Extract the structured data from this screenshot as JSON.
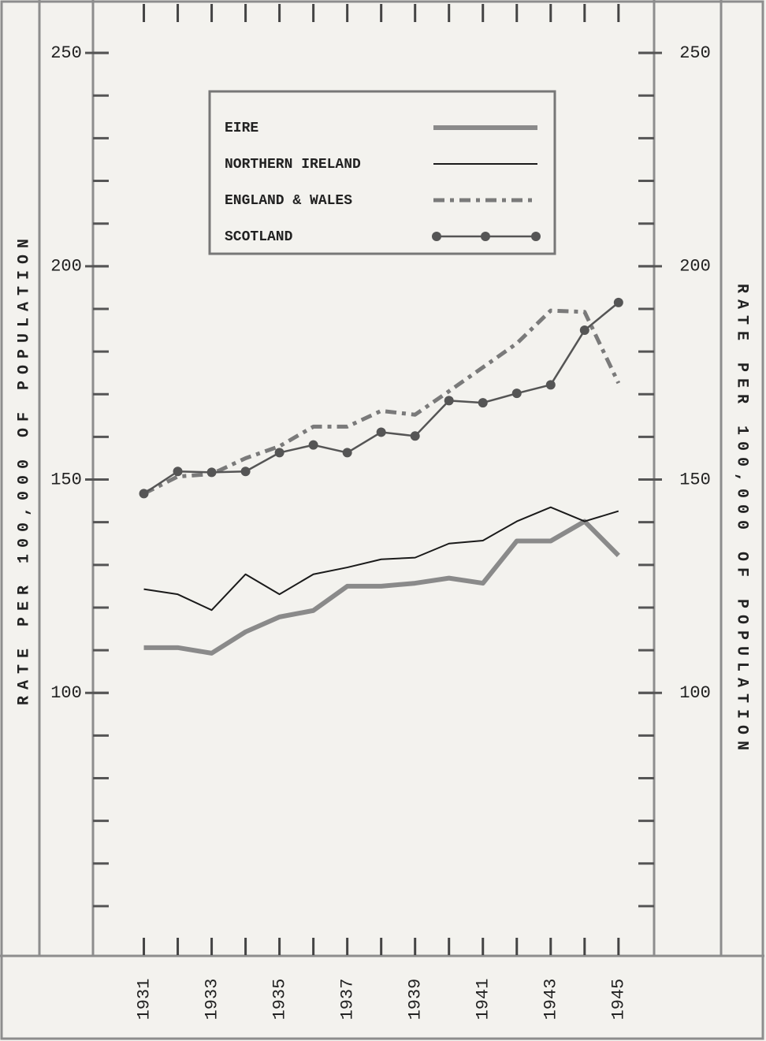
{
  "chart_data": {
    "type": "line",
    "y_label": "RATE PER 100,000 OF POPULATION",
    "x": [
      1931,
      1932,
      1933,
      1934,
      1935,
      1936,
      1937,
      1938,
      1939,
      1940,
      1941,
      1942,
      1943,
      1944,
      1945
    ],
    "series": [
      {
        "name": "EIRE",
        "color": "#8a8a8a",
        "line_style": "solid",
        "width": 6,
        "markers": false,
        "values": [
          110.6,
          110.6,
          109.3,
          114.3,
          117.8,
          119.3,
          125,
          125,
          125.7,
          126.9,
          125.7,
          135.6,
          135.6,
          140.2,
          132.2
        ]
      },
      {
        "name": "NORTHERN IRELAND",
        "color": "#1a1a1a",
        "line_style": "solid",
        "width": 2,
        "markers": false,
        "values": [
          124.3,
          123.1,
          119.4,
          127.8,
          123.1,
          127.8,
          129.4,
          131.3,
          131.7,
          135,
          135.7,
          140.2,
          143.5,
          140.2,
          142.6
        ]
      },
      {
        "name": "ENGLAND & WALES",
        "color": "#7a7a7a",
        "line_style": "dashed",
        "width": 5,
        "markers": false,
        "values": [
          146.7,
          150.7,
          151.3,
          155,
          157.8,
          162.4,
          162.4,
          166.1,
          165.2,
          170.7,
          176.3,
          181.9,
          189.6,
          189.3,
          172.6
        ]
      },
      {
        "name": "SCOTLAND",
        "color": "#555555",
        "line_style": "solid",
        "width": 2.5,
        "markers": true,
        "values": [
          146.7,
          151.9,
          151.7,
          151.9,
          156.3,
          158.1,
          156.3,
          161.1,
          160.2,
          168.5,
          168,
          170.2,
          172.2,
          185,
          191.5
        ]
      }
    ],
    "xlim": [
      1929.5,
      1946.05
    ],
    "xticks": [
      1931,
      1933,
      1935,
      1937,
      1939,
      1941,
      1943,
      1945
    ],
    "minor_xticks": [
      1931,
      1932,
      1933,
      1934,
      1935,
      1936,
      1937,
      1938,
      1939,
      1940,
      1941,
      1942,
      1943,
      1944,
      1945
    ],
    "ylim": [
      42.6,
      262.4
    ],
    "yticks": [
      100,
      150,
      200,
      250
    ],
    "minor_yticks": [
      50,
      60,
      70,
      80,
      90,
      100,
      110,
      120,
      130,
      140,
      150,
      160,
      170,
      180,
      190,
      200,
      210,
      220,
      230,
      240,
      250
    ],
    "legend": "upper-center"
  }
}
